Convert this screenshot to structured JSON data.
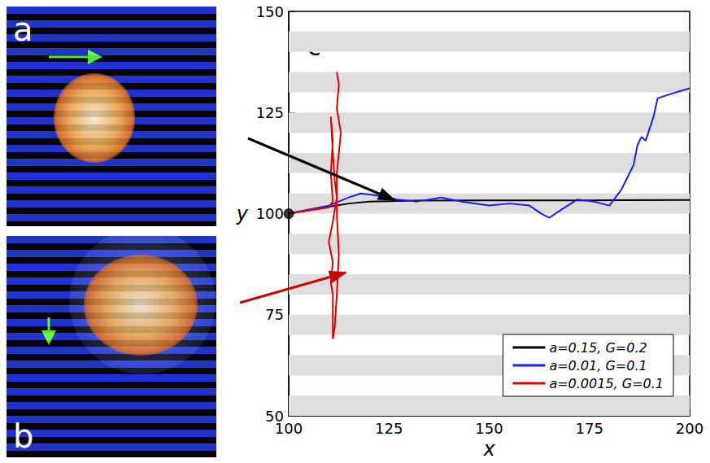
{
  "chart_data": {
    "type": "line",
    "panel_label": "c",
    "x_label": "x",
    "y_label": "y",
    "xlim": [
      100,
      200
    ],
    "xticks": [
      100,
      125,
      150,
      175,
      200
    ],
    "ylim": [
      50,
      150
    ],
    "yticks": [
      50,
      75,
      100,
      125,
      150
    ],
    "bands": [
      [
        50,
        55
      ],
      [
        60,
        65
      ],
      [
        70,
        75
      ],
      [
        80,
        85
      ],
      [
        90,
        95
      ],
      [
        100,
        105
      ],
      [
        110,
        115
      ],
      [
        120,
        125
      ],
      [
        130,
        135
      ],
      [
        140,
        145
      ]
    ],
    "start": [
      100,
      100
    ],
    "legend": "lower right",
    "series": [
      {
        "name": "a=0.15, G=0.2",
        "color": "#000000",
        "x": [
          100,
          105,
          110,
          115,
          120,
          130,
          150,
          175,
          200
        ],
        "values": [
          100,
          100.8,
          101.7,
          102.5,
          103,
          103.2,
          103.3,
          103.3,
          103.4
        ]
      },
      {
        "name": "a=0.01, G=0.1",
        "color": "#1a1aff",
        "x": [
          100,
          105,
          110,
          115,
          118,
          122,
          127,
          132,
          138,
          143,
          150,
          155,
          160,
          163,
          165,
          168,
          172,
          176,
          180,
          183,
          186,
          187,
          188,
          189,
          190,
          191,
          192,
          195,
          200
        ],
        "values": [
          100,
          101,
          102,
          104,
          105,
          104.5,
          103.5,
          103,
          104,
          103,
          102,
          102.5,
          102,
          100,
          99,
          101,
          103.5,
          103,
          102,
          106,
          112,
          117,
          119,
          118,
          121,
          124,
          128.5,
          129.5,
          131
        ]
      },
      {
        "name": "a=0.0015, G=0.1",
        "color": "#e00000",
        "x": [
          100,
          105,
          110,
          111,
          110.5,
          111,
          110.5,
          111,
          111.5,
          112,
          111,
          110,
          111,
          110.5,
          111,
          111,
          111,
          111.5,
          112,
          112.5,
          112,
          112,
          113,
          112,
          112.5,
          112
        ],
        "values": [
          100,
          100.8,
          101.5,
          103,
          110,
          118,
          124,
          115,
          108,
          104,
          98,
          93,
          88,
          83,
          80,
          75,
          69,
          72,
          80,
          90,
          100,
          110,
          120,
          126,
          132,
          135
        ]
      }
    ]
  },
  "image_panels": [
    {
      "label": "a"
    },
    {
      "label": "b"
    }
  ]
}
